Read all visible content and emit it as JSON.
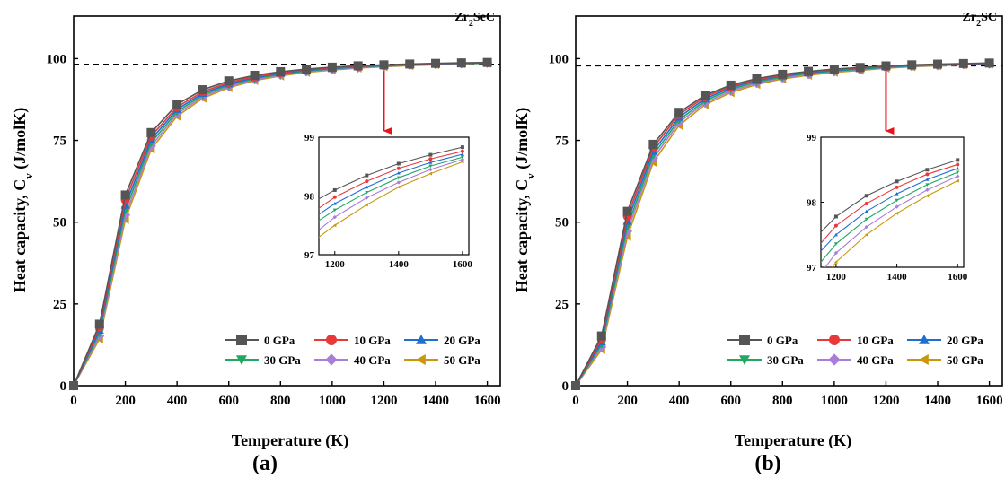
{
  "colors": {
    "axis": "#000000",
    "reference_line": "#000000",
    "arrow": "#e8141c",
    "series": [
      "#555555",
      "#e8393a",
      "#1f6fd1",
      "#21a760",
      "#a77ed9",
      "#c9960c"
    ]
  },
  "markers": [
    "square",
    "circle",
    "triangle-up",
    "triangle-down",
    "diamond",
    "triangle-left"
  ],
  "chart_data": [
    {
      "type": "line",
      "panel_label": "(a)",
      "compound": {
        "base1": "Zr",
        "sub": "2",
        "base2": "SeC"
      },
      "xlabel": "Temperature (K)",
      "ylabel_main": "Heat capacity, C",
      "ylabel_sub": "v",
      "ylabel_unit": " (J/molK)",
      "xlim": [
        0,
        1650
      ],
      "ylim": [
        0,
        113
      ],
      "xticks": [
        0,
        200,
        400,
        600,
        800,
        1000,
        1200,
        1400,
        1600
      ],
      "yticks": [
        0,
        25,
        50,
        75,
        100
      ],
      "reference_line_y": 98.3,
      "arrow_x": 1200,
      "x": [
        0,
        100,
        200,
        300,
        400,
        500,
        600,
        700,
        800,
        900,
        1000,
        1100,
        1200,
        1300,
        1400,
        1500,
        1600
      ],
      "series": [
        {
          "name": "0 GPa",
          "values": [
            0,
            18.8,
            58.3,
            77.4,
            86.0,
            90.5,
            93.2,
            94.9,
            96.0,
            96.8,
            97.4,
            97.8,
            98.1,
            98.35,
            98.55,
            98.7,
            98.83
          ]
        },
        {
          "name": "10 GPa",
          "values": [
            0,
            17.9,
            56.8,
            76.3,
            85.2,
            89.9,
            92.7,
            94.5,
            95.7,
            96.6,
            97.2,
            97.6,
            97.98,
            98.25,
            98.47,
            98.63,
            98.76
          ]
        },
        {
          "name": "20 GPa",
          "values": [
            0,
            17.0,
            55.2,
            75.3,
            84.5,
            89.4,
            92.3,
            94.2,
            95.5,
            96.4,
            97.0,
            97.5,
            97.87,
            98.15,
            98.39,
            98.57,
            98.71
          ]
        },
        {
          "name": "30 GPa",
          "values": [
            0,
            16.1,
            53.7,
            74.3,
            83.8,
            88.9,
            91.9,
            93.9,
            95.2,
            96.2,
            96.9,
            97.4,
            97.76,
            98.06,
            98.31,
            98.51,
            98.66
          ]
        },
        {
          "name": "40 GPa",
          "values": [
            0,
            15.2,
            52.2,
            73.3,
            83.1,
            88.4,
            91.5,
            93.6,
            95.0,
            96.0,
            96.7,
            97.2,
            97.64,
            97.97,
            98.23,
            98.45,
            98.62
          ]
        },
        {
          "name": "50 GPa",
          "values": [
            0,
            14.3,
            50.8,
            72.3,
            82.4,
            87.9,
            91.1,
            93.3,
            94.7,
            95.8,
            96.5,
            97.1,
            97.5,
            97.85,
            98.15,
            98.38,
            98.58
          ]
        }
      ],
      "inset": {
        "xlim": [
          1150,
          1620
        ],
        "ylim": [
          97,
          99
        ],
        "xticks": [
          1200,
          1400,
          1600
        ],
        "yticks": [
          97,
          98,
          99
        ]
      }
    },
    {
      "type": "line",
      "panel_label": "(b)",
      "compound": {
        "base1": "Zr",
        "sub": "2",
        "base2": "SC"
      },
      "xlabel": "Temperature (K)",
      "ylabel_main": "Heat capacity, C",
      "ylabel_sub": "v",
      "ylabel_unit": " (J/molK)",
      "xlim": [
        0,
        1650
      ],
      "ylim": [
        0,
        113
      ],
      "xticks": [
        0,
        200,
        400,
        600,
        800,
        1000,
        1200,
        1400,
        1600
      ],
      "yticks": [
        0,
        25,
        50,
        75,
        100
      ],
      "reference_line_y": 97.8,
      "arrow_x": 1200,
      "x": [
        0,
        100,
        200,
        300,
        400,
        500,
        600,
        700,
        800,
        900,
        1000,
        1100,
        1200,
        1300,
        1400,
        1500,
        1600
      ],
      "series": [
        {
          "name": "0 GPa",
          "values": [
            0,
            15.2,
            53.3,
            73.8,
            83.6,
            88.8,
            91.9,
            93.9,
            95.2,
            96.1,
            96.8,
            97.3,
            97.78,
            98.1,
            98.32,
            98.5,
            98.65
          ]
        },
        {
          "name": "10 GPa",
          "values": [
            0,
            14.3,
            51.8,
            72.8,
            82.9,
            88.3,
            91.5,
            93.6,
            94.9,
            95.9,
            96.6,
            97.1,
            97.64,
            97.98,
            98.23,
            98.43,
            98.58
          ]
        },
        {
          "name": "20 GPa",
          "values": [
            0,
            13.4,
            50.3,
            71.7,
            82.1,
            87.7,
            91.1,
            93.3,
            94.7,
            95.7,
            96.4,
            97.0,
            97.5,
            97.86,
            98.13,
            98.35,
            98.52
          ]
        },
        {
          "name": "30 GPa",
          "values": [
            0,
            12.6,
            48.7,
            70.6,
            81.3,
            87.1,
            90.6,
            92.9,
            94.4,
            95.5,
            96.2,
            96.8,
            97.36,
            97.74,
            98.03,
            98.27,
            98.46
          ]
        },
        {
          "name": "40 GPa",
          "values": [
            0,
            11.8,
            47.2,
            69.5,
            80.5,
            86.5,
            90.1,
            92.5,
            94.1,
            95.2,
            96.0,
            96.6,
            97.22,
            97.62,
            97.93,
            98.19,
            98.4
          ]
        },
        {
          "name": "50 GPa",
          "values": [
            0,
            11.0,
            45.6,
            68.3,
            79.6,
            85.9,
            89.6,
            92.1,
            93.8,
            94.9,
            95.8,
            96.4,
            97.08,
            97.5,
            97.83,
            98.1,
            98.33
          ]
        }
      ],
      "inset": {
        "xlim": [
          1150,
          1620
        ],
        "ylim": [
          97,
          99
        ],
        "xticks": [
          1200,
          1400,
          1600
        ],
        "yticks": [
          97,
          98,
          99
        ]
      }
    }
  ]
}
